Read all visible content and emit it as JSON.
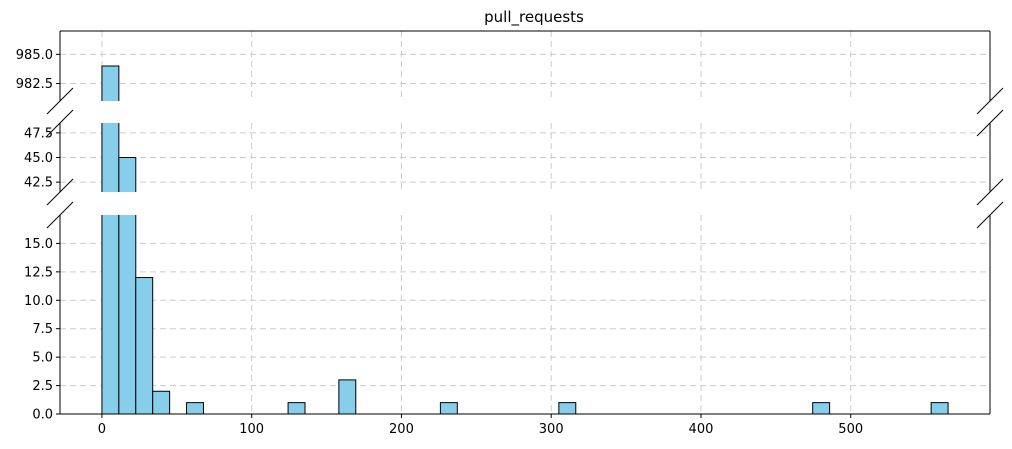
{
  "chart_data": {
    "type": "bar",
    "title": "pull_requests",
    "xlabel": "",
    "ylabel": "",
    "grid": true,
    "colors": {
      "bar_fill": "#87ceeb",
      "bar_edge": "#000000",
      "grid": "#cccccc"
    },
    "xlim": [
      -28,
      593
    ],
    "xticks": [
      0,
      100,
      200,
      300,
      400,
      500
    ],
    "bin_width": 11.3,
    "bins": [
      {
        "x0": 0.0,
        "count": 984
      },
      {
        "x0": 11.3,
        "count": 45
      },
      {
        "x0": 22.6,
        "count": 12
      },
      {
        "x0": 33.9,
        "count": 2
      },
      {
        "x0": 56.5,
        "count": 1
      },
      {
        "x0": 124.3,
        "count": 1
      },
      {
        "x0": 158.2,
        "count": 3
      },
      {
        "x0": 226.0,
        "count": 1
      },
      {
        "x0": 305.1,
        "count": 1
      },
      {
        "x0": 474.6,
        "count": 1
      },
      {
        "x0": 553.7,
        "count": 1
      }
    ],
    "broken_axis_panels": [
      {
        "ylim": [
          981,
          987
        ],
        "yticks": [
          "982.5",
          "985.0"
        ]
      },
      {
        "ylim": [
          41.5,
          48.5
        ],
        "yticks": [
          "42.5",
          "45.0",
          "47.5"
        ]
      },
      {
        "ylim": [
          0,
          17.5
        ],
        "yticks": [
          "0.0",
          "2.5",
          "5.0",
          "7.5",
          "10.0",
          "12.5",
          "15.0"
        ]
      }
    ]
  }
}
